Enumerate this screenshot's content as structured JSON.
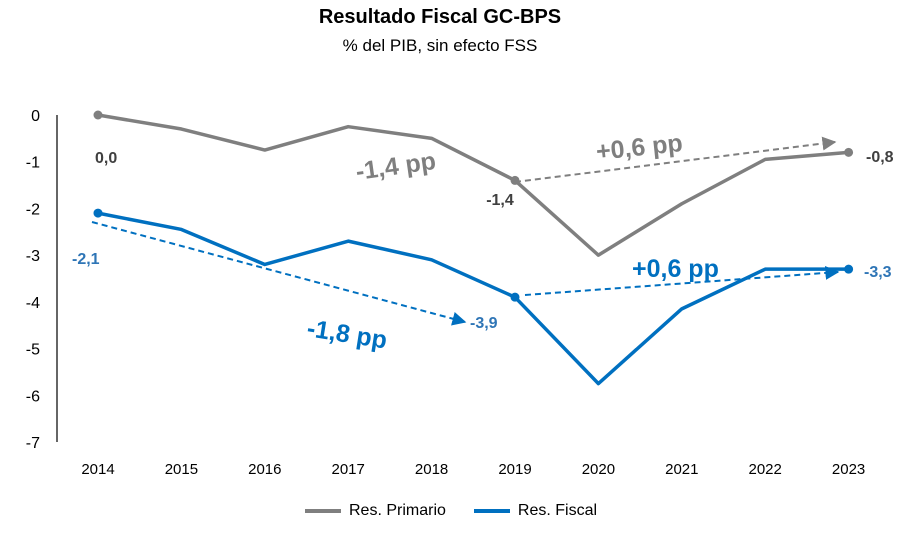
{
  "colors": {
    "primario": "#7f7f7f",
    "fiscal": "#0070c0",
    "axis": "#000000"
  },
  "chart_data": {
    "type": "line",
    "title": "Resultado Fiscal GC-BPS",
    "subtitle": "% del PIB, sin efecto FSS",
    "xlabel": "",
    "ylabel": "",
    "ylim": [
      -7,
      0
    ],
    "yticks": [
      "0",
      "-1",
      "-2",
      "-3",
      "-4",
      "-5",
      "-6",
      "-7"
    ],
    "categories": [
      "2014",
      "2015",
      "2016",
      "2017",
      "2018",
      "2019",
      "2020",
      "2021",
      "2022",
      "2023"
    ],
    "series": [
      {
        "name": "Res. Primario",
        "values": [
          0.0,
          -0.3,
          -0.75,
          -0.25,
          -0.5,
          -1.4,
          -3.0,
          -1.9,
          -0.95,
          -0.8
        ]
      },
      {
        "name": "Res. Fiscal",
        "values": [
          -2.1,
          -2.45,
          -3.2,
          -2.7,
          -3.1,
          -3.9,
          -5.75,
          -4.15,
          -3.3,
          -3.3
        ]
      }
    ],
    "data_labels": {
      "primario_2014": "0,0",
      "primario_2019": "-1,4",
      "primario_2023": "-0,8",
      "fiscal_2014": "-2,1",
      "fiscal_2019": "-3,9",
      "fiscal_2023": "-3,3"
    },
    "annotations": {
      "primario_change_1": "-1,4 pp",
      "primario_change_2": "+0,6 pp",
      "fiscal_change_1": "-1,8 pp",
      "fiscal_change_2": "+0,6 pp"
    }
  }
}
